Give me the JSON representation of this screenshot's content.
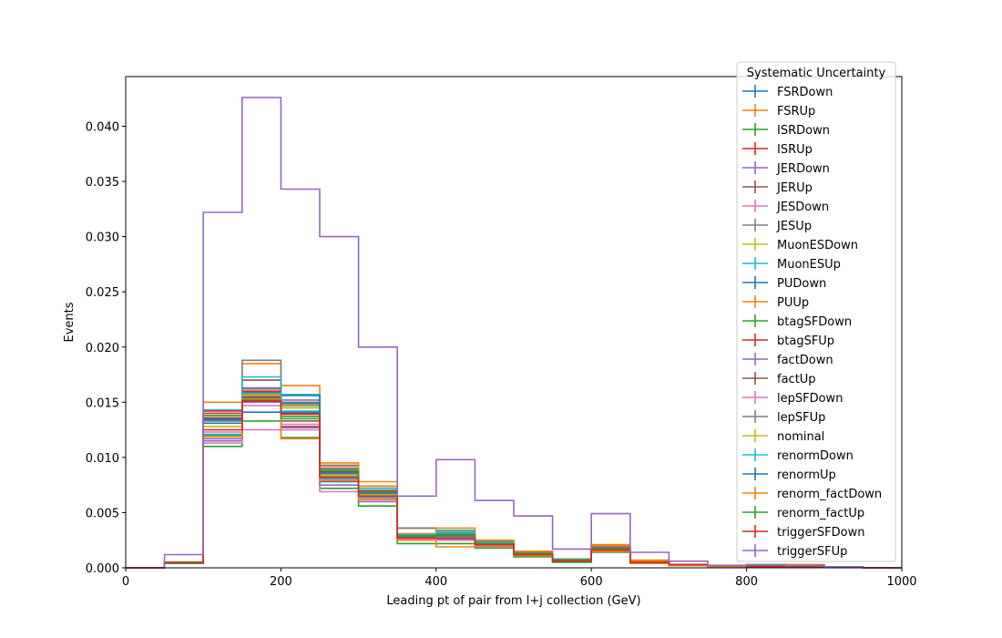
{
  "chart_data": {
    "type": "step-histogram",
    "xlabel": "Leading pt of pair from l+j collection (GeV)",
    "ylabel": "Events",
    "xlim": [
      0,
      1000
    ],
    "ylim": [
      0,
      0.0445
    ],
    "x_ticks": [
      0,
      200,
      400,
      600,
      800,
      1000
    ],
    "y_ticks": [
      0.0,
      0.005,
      0.01,
      0.015,
      0.02,
      0.025,
      0.03,
      0.035,
      0.04
    ],
    "y_tick_labels": [
      "0.000",
      "0.005",
      "0.010",
      "0.015",
      "0.020",
      "0.025",
      "0.030",
      "0.035",
      "0.040"
    ],
    "grid": false,
    "legend": {
      "title": "Systematic Uncertainty",
      "placement": "upper-right"
    },
    "bin_edges": [
      0,
      50,
      100,
      150,
      200,
      250,
      300,
      350,
      400,
      450,
      500,
      550,
      600,
      650,
      700,
      750,
      800,
      850,
      900,
      950,
      1000
    ],
    "series": [
      {
        "name": "FSRDown",
        "color": "#1f77b4",
        "values": [
          0,
          0.0005,
          0.012,
          0.0141,
          0.0141,
          0.0078,
          0.0062,
          0.0027,
          0.0027,
          0.002,
          0.0013,
          0.0007,
          0.0019,
          0.0005,
          0.0003,
          0.0002,
          0.0002,
          0.0002,
          0.0001,
          0
        ]
      },
      {
        "name": "FSRUp",
        "color": "#ff7f0e",
        "values": [
          0,
          0.0005,
          0.012,
          0.0185,
          0.0165,
          0.0092,
          0.0078,
          0.0031,
          0.0033,
          0.0024,
          0.0014,
          0.0008,
          0.002,
          0.0007,
          0.0003,
          0.0002,
          0.0002,
          0.0003,
          0.0001,
          0
        ]
      },
      {
        "name": "ISRDown",
        "color": "#2ca02c",
        "values": [
          0,
          0.0004,
          0.011,
          0.0133,
          0.0118,
          0.0072,
          0.0056,
          0.0022,
          0.0022,
          0.0018,
          0.001,
          0.0005,
          0.0014,
          0.0004,
          0.0002,
          0.0001,
          0.0001,
          0.0001,
          0.0001,
          0
        ]
      },
      {
        "name": "ISRUp",
        "color": "#d62728",
        "values": [
          0,
          0.0005,
          0.014,
          0.016,
          0.015,
          0.009,
          0.007,
          0.003,
          0.0028,
          0.0022,
          0.0013,
          0.0007,
          0.0017,
          0.0005,
          0.0003,
          0.0002,
          0.0002,
          0.0002,
          0.0001,
          0
        ]
      },
      {
        "name": "JERDown",
        "color": "#9467bd",
        "values": [
          0,
          0.0005,
          0.0115,
          0.015,
          0.0152,
          0.0085,
          0.0065,
          0.0028,
          0.0027,
          0.0021,
          0.0012,
          0.0006,
          0.0016,
          0.0005,
          0.0003,
          0.0002,
          0.0001,
          0.0002,
          0.0001,
          0
        ]
      },
      {
        "name": "JERUp",
        "color": "#8c564b",
        "values": [
          0,
          0.0005,
          0.0135,
          0.017,
          0.014,
          0.0088,
          0.0069,
          0.0036,
          0.003,
          0.0023,
          0.0013,
          0.0007,
          0.0018,
          0.0006,
          0.0003,
          0.0002,
          0.0002,
          0.0002,
          0.0001,
          0
        ]
      },
      {
        "name": "JESDown",
        "color": "#e377c2",
        "values": [
          0,
          0.0005,
          0.0113,
          0.0125,
          0.0125,
          0.0069,
          0.006,
          0.0025,
          0.0025,
          0.0019,
          0.0011,
          0.0006,
          0.0015,
          0.0004,
          0.0002,
          0.0001,
          0.0001,
          0.0001,
          0.0001,
          0
        ]
      },
      {
        "name": "JESUp",
        "color": "#7f7f7f",
        "values": [
          0,
          0.0005,
          0.0138,
          0.0188,
          0.0147,
          0.0093,
          0.0074,
          0.0036,
          0.0031,
          0.0024,
          0.0014,
          0.0008,
          0.0019,
          0.0006,
          0.0003,
          0.0002,
          0.0002,
          0.0002,
          0.0001,
          0
        ]
      },
      {
        "name": "MuonESDown",
        "color": "#bcbd22",
        "values": [
          0,
          0.0005,
          0.0128,
          0.0155,
          0.0148,
          0.0083,
          0.0066,
          0.0027,
          0.0027,
          0.0021,
          0.0012,
          0.0007,
          0.0016,
          0.0005,
          0.0003,
          0.0002,
          0.0001,
          0.0002,
          0.0001,
          0
        ]
      },
      {
        "name": "MuonESUp",
        "color": "#17becf",
        "values": [
          0,
          0.0005,
          0.0143,
          0.0173,
          0.0157,
          0.0089,
          0.0072,
          0.003,
          0.0034,
          0.0023,
          0.0013,
          0.0007,
          0.0017,
          0.0006,
          0.0003,
          0.0002,
          0.0002,
          0.0002,
          0.0001,
          0
        ]
      },
      {
        "name": "PUDown",
        "color": "#1f77b4",
        "values": [
          0,
          0.0005,
          0.0131,
          0.0153,
          0.0156,
          0.0087,
          0.0068,
          0.0028,
          0.0028,
          0.0022,
          0.0012,
          0.0007,
          0.0016,
          0.0005,
          0.0003,
          0.0002,
          0.0001,
          0.0002,
          0.0001,
          0
        ]
      },
      {
        "name": "PUUp",
        "color": "#ff7f0e",
        "values": [
          0,
          0.0005,
          0.015,
          0.0157,
          0.0145,
          0.0095,
          0.0074,
          0.0029,
          0.0036,
          0.0025,
          0.0015,
          0.0007,
          0.0021,
          0.0006,
          0.0003,
          0.0002,
          0.0002,
          0.0002,
          0.0001,
          0
        ]
      },
      {
        "name": "btagSFDown",
        "color": "#2ca02c",
        "values": [
          0,
          0.0005,
          0.012,
          0.0152,
          0.0137,
          0.0082,
          0.0065,
          0.0025,
          0.0026,
          0.002,
          0.0011,
          0.0006,
          0.0015,
          0.0005,
          0.0002,
          0.0001,
          0.0001,
          0.0001,
          0.0001,
          0
        ]
      },
      {
        "name": "btagSFUp",
        "color": "#d62728",
        "values": [
          0,
          0.0005,
          0.0142,
          0.0155,
          0.0128,
          0.0087,
          0.0068,
          0.0028,
          0.0029,
          0.0021,
          0.0012,
          0.0007,
          0.0017,
          0.0005,
          0.0003,
          0.0002,
          0.0002,
          0.0002,
          0.0001,
          0
        ]
      },
      {
        "name": "factDown",
        "color": "#9467bd",
        "values": [
          0,
          0.0005,
          0.0117,
          0.0163,
          0.0127,
          0.0075,
          0.006,
          0.0026,
          0.0026,
          0.002,
          0.0011,
          0.0006,
          0.0015,
          0.0004,
          0.0002,
          0.0001,
          0.0001,
          0.0001,
          0.0001,
          0
        ]
      },
      {
        "name": "factUp",
        "color": "#8c564b",
        "values": [
          0,
          0.0005,
          0.0136,
          0.0159,
          0.0133,
          0.0084,
          0.0066,
          0.0028,
          0.0028,
          0.0021,
          0.0012,
          0.0006,
          0.0016,
          0.0005,
          0.0003,
          0.0002,
          0.0001,
          0.0002,
          0.0001,
          0
        ]
      },
      {
        "name": "lepSFDown",
        "color": "#e377c2",
        "values": [
          0,
          0.0005,
          0.0123,
          0.0147,
          0.013,
          0.008,
          0.0063,
          0.0026,
          0.0027,
          0.002,
          0.0011,
          0.0006,
          0.0015,
          0.0005,
          0.0002,
          0.0001,
          0.0001,
          0.0001,
          0.0001,
          0
        ]
      },
      {
        "name": "lepSFUp",
        "color": "#7f7f7f",
        "values": [
          0,
          0.0005,
          0.0133,
          0.0162,
          0.015,
          0.0086,
          0.0067,
          0.0028,
          0.0028,
          0.0021,
          0.0012,
          0.0007,
          0.0016,
          0.0005,
          0.0003,
          0.0002,
          0.0001,
          0.0002,
          0.0001,
          0
        ]
      },
      {
        "name": "nominal",
        "color": "#bcbd22",
        "values": [
          0,
          0.0005,
          0.0128,
          0.0156,
          0.0145,
          0.0084,
          0.0066,
          0.0027,
          0.0028,
          0.0021,
          0.0012,
          0.0006,
          0.0016,
          0.0005,
          0.0003,
          0.0002,
          0.0001,
          0.0002,
          0.0001,
          0
        ]
      },
      {
        "name": "renormDown",
        "color": "#17becf",
        "values": [
          0,
          0.0005,
          0.0121,
          0.0158,
          0.0142,
          0.0081,
          0.0064,
          0.0027,
          0.0032,
          0.0022,
          0.0012,
          0.0006,
          0.0016,
          0.0005,
          0.0003,
          0.0002,
          0.0001,
          0.0002,
          0.0001,
          0
        ]
      },
      {
        "name": "renormUp",
        "color": "#1f77b4",
        "values": [
          0,
          0.0005,
          0.0134,
          0.0154,
          0.0149,
          0.0086,
          0.0068,
          0.0029,
          0.0029,
          0.0021,
          0.0012,
          0.0007,
          0.0017,
          0.0005,
          0.0003,
          0.0002,
          0.0002,
          0.0002,
          0.0001,
          0
        ]
      },
      {
        "name": "renorm_factDown",
        "color": "#ff7f0e",
        "values": [
          0,
          0.0005,
          0.0119,
          0.0153,
          0.0117,
          0.0079,
          0.0062,
          0.0025,
          0.0019,
          0.002,
          0.0011,
          0.0006,
          0.0015,
          0.0004,
          0.0002,
          0.0001,
          0.0001,
          0.0001,
          0.0001,
          0
        ]
      },
      {
        "name": "renorm_factUp",
        "color": "#2ca02c",
        "values": [
          0,
          0.0005,
          0.0138,
          0.0152,
          0.0135,
          0.0088,
          0.0069,
          0.0029,
          0.003,
          0.0022,
          0.0013,
          0.0007,
          0.0017,
          0.0005,
          0.0003,
          0.0002,
          0.0002,
          0.0002,
          0.0001,
          0
        ]
      },
      {
        "name": "triggerSFDown",
        "color": "#d62728",
        "values": [
          0,
          0.0005,
          0.0125,
          0.0151,
          0.0139,
          0.0082,
          0.0065,
          0.0027,
          0.0027,
          0.0021,
          0.0012,
          0.0006,
          0.0016,
          0.0005,
          0.0003,
          0.0002,
          0.0001,
          0.0001,
          0.0001,
          0
        ]
      },
      {
        "name": "triggerSFUp",
        "color": "#9467bd",
        "values": [
          0,
          0.0012,
          0.0322,
          0.0426,
          0.0343,
          0.03,
          0.02,
          0.0065,
          0.0098,
          0.0061,
          0.0047,
          0.0017,
          0.0049,
          0.0014,
          0.0006,
          0.0002,
          0.0003,
          0.0002,
          0.0001,
          0
        ]
      }
    ]
  }
}
